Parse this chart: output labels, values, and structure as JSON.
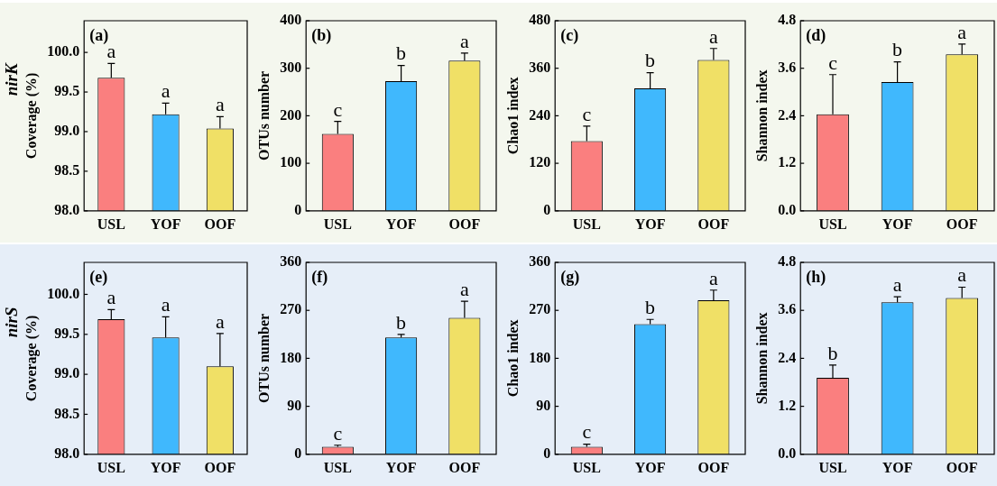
{
  "chart_data": [
    {
      "type": "bar",
      "title": "(a)",
      "ylabel": "Coverage (%)",
      "categories": [
        "USL",
        "YOF",
        "OOF"
      ],
      "values": [
        99.68,
        99.22,
        99.04
      ],
      "colors": [
        "#fa7f7f",
        "#40b8fd",
        "#f0e066"
      ],
      "errors": [
        [
          99.68,
          99.86
        ],
        [
          99.22,
          99.36
        ],
        [
          99.04,
          99.19
        ]
      ],
      "ylim": [
        98.0,
        100.4
      ],
      "yticks": [
        {
          "value": 98,
          "label": "98.0"
        },
        {
          "value": 98.5,
          "label": "98.5"
        },
        {
          "value": 99,
          "label": "99.0"
        },
        {
          "value": 99.5,
          "label": "99.5"
        },
        {
          "value": 100,
          "label": "100.0"
        }
      ],
      "grid": false,
      "legend": false,
      "annotations": [
        "nirK",
        {
          "text": "a",
          "x": "USL",
          "y": 99.86
        },
        {
          "text": "a",
          "x": "YOF",
          "y": 99.36
        },
        {
          "text": "a",
          "x": "OOF",
          "y": 99.19
        }
      ]
    },
    {
      "type": "bar",
      "title": "(b)",
      "ylabel": "OTUs number",
      "categories": [
        "USL",
        "YOF",
        "OOF"
      ],
      "values": [
        162,
        273,
        316
      ],
      "colors": [
        "#fa7f7f",
        "#40b8fd",
        "#f0e066"
      ],
      "errors": [
        [
          162,
          188
        ],
        [
          273,
          306
        ],
        [
          316,
          332
        ]
      ],
      "ylim": [
        0,
        400
      ],
      "yticks": [
        0,
        100,
        200,
        300,
        400
      ],
      "grid": false,
      "legend": false,
      "annotations": [
        {
          "text": "c",
          "x": "USL",
          "y": 188
        },
        {
          "text": "b",
          "x": "YOF",
          "y": 306
        },
        {
          "text": "a",
          "x": "OOF",
          "y": 332
        }
      ]
    },
    {
      "type": "bar",
      "title": "(c)",
      "ylabel": "Chao1 index",
      "categories": [
        "USL",
        "YOF",
        "OOF"
      ],
      "values": [
        176,
        309,
        381
      ],
      "colors": [
        "#fa7f7f",
        "#40b8fd",
        "#f0e066"
      ],
      "errors": [
        [
          176,
          214
        ],
        [
          309,
          349
        ],
        [
          381,
          410
        ]
      ],
      "ylim": [
        0,
        480
      ],
      "yticks": [
        0,
        120,
        240,
        360,
        480
      ],
      "grid": false,
      "legend": false,
      "annotations": [
        {
          "text": "c",
          "x": "USL",
          "y": 214
        },
        {
          "text": "b",
          "x": "YOF",
          "y": 349
        },
        {
          "text": "a",
          "x": "OOF",
          "y": 410
        }
      ]
    },
    {
      "type": "bar",
      "title": "(d)",
      "ylabel": "Shannon index",
      "categories": [
        "USL",
        "YOF",
        "OOF"
      ],
      "values": [
        2.44,
        3.25,
        3.95
      ],
      "colors": [
        "#fa7f7f",
        "#40b8fd",
        "#f0e066"
      ],
      "errors": [
        [
          2.44,
          3.44
        ],
        [
          3.25,
          3.76
        ],
        [
          3.95,
          4.21
        ]
      ],
      "ylim": [
        0,
        4.8
      ],
      "yticks": [
        {
          "value": 0,
          "label": "0.0"
        },
        1.2,
        2.4,
        3.6,
        4.8
      ],
      "grid": false,
      "legend": false,
      "annotations": [
        {
          "text": "c",
          "x": "USL",
          "y": 3.44
        },
        {
          "text": "b",
          "x": "YOF",
          "y": 3.76
        },
        {
          "text": "a",
          "x": "OOF",
          "y": 4.21
        }
      ]
    },
    {
      "type": "bar",
      "title": "(e)",
      "ylabel": "Coverage (%)",
      "categories": [
        "USL",
        "YOF",
        "OOF"
      ],
      "values": [
        99.69,
        99.46,
        99.1
      ],
      "colors": [
        "#fa7f7f",
        "#40b8fd",
        "#f0e066"
      ],
      "errors": [
        [
          99.69,
          99.81
        ],
        [
          99.46,
          99.72
        ],
        [
          99.1,
          99.51
        ]
      ],
      "ylim": [
        98.0,
        100.4
      ],
      "yticks": [
        {
          "value": 98,
          "label": "98.0"
        },
        {
          "value": 98.5,
          "label": "98.5"
        },
        {
          "value": 99,
          "label": "99.0"
        },
        {
          "value": 99.5,
          "label": "99.5"
        },
        {
          "value": 100,
          "label": "100.0"
        }
      ],
      "grid": false,
      "legend": false,
      "annotations": [
        "nirS",
        {
          "text": "a",
          "x": "USL",
          "y": 99.81
        },
        {
          "text": "a",
          "x": "YOF",
          "y": 99.72
        },
        {
          "text": "a",
          "x": "OOF",
          "y": 99.51
        }
      ]
    },
    {
      "type": "bar",
      "title": "(f)",
      "ylabel": "OTUs number",
      "categories": [
        "USL",
        "YOF",
        "OOF"
      ],
      "values": [
        14,
        219,
        256
      ],
      "colors": [
        "#fa7f7f",
        "#40b8fd",
        "#f0e066"
      ],
      "errors": [
        [
          14,
          17
        ],
        [
          219,
          225
        ],
        [
          256,
          287
        ]
      ],
      "ylim": [
        0,
        360
      ],
      "yticks": [
        0,
        90,
        180,
        270,
        360
      ],
      "grid": false,
      "legend": false,
      "annotations": [
        {
          "text": "c",
          "x": "USL",
          "y": 17
        },
        {
          "text": "b",
          "x": "YOF",
          "y": 225
        },
        {
          "text": "a",
          "x": "OOF",
          "y": 287
        }
      ]
    },
    {
      "type": "bar",
      "title": "(g)",
      "ylabel": "Chao1 index",
      "categories": [
        "USL",
        "YOF",
        "OOF"
      ],
      "values": [
        14,
        244,
        289
      ],
      "colors": [
        "#fa7f7f",
        "#40b8fd",
        "#f0e066"
      ],
      "errors": [
        [
          14,
          19
        ],
        [
          244,
          253
        ],
        [
          289,
          308
        ]
      ],
      "ylim": [
        0,
        360
      ],
      "yticks": [
        0,
        90,
        180,
        270,
        360
      ],
      "grid": false,
      "legend": false,
      "annotations": [
        {
          "text": "c",
          "x": "USL",
          "y": 19
        },
        {
          "text": "b",
          "x": "YOF",
          "y": 253
        },
        {
          "text": "a",
          "x": "OOF",
          "y": 308
        }
      ]
    },
    {
      "type": "bar",
      "title": "(h)",
      "ylabel": "Shannon index",
      "categories": [
        "USL",
        "YOF",
        "OOF"
      ],
      "values": [
        1.91,
        3.8,
        3.91
      ],
      "colors": [
        "#fa7f7f",
        "#40b8fd",
        "#f0e066"
      ],
      "errors": [
        [
          1.91,
          2.23
        ],
        [
          3.8,
          3.94
        ],
        [
          3.91,
          4.18
        ]
      ],
      "ylim": [
        0,
        4.8
      ],
      "yticks": [
        {
          "value": 0,
          "label": "0.0"
        },
        1.2,
        2.4,
        3.6,
        4.8
      ],
      "grid": false,
      "legend": false,
      "annotations": [
        {
          "text": "b",
          "x": "USL",
          "y": 2.23
        },
        {
          "text": "a",
          "x": "YOF",
          "y": 3.94
        },
        {
          "text": "a",
          "x": "OOF",
          "y": 4.18
        }
      ]
    }
  ]
}
